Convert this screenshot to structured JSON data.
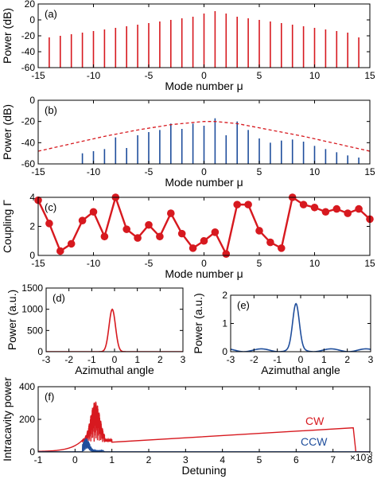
{
  "colors": {
    "red": "#d7191f",
    "blue": "#1f4e9c",
    "axis": "#000000"
  },
  "chart_data": [
    {
      "id": "a",
      "panel_label": "(a)",
      "type": "bar",
      "xlabel": "Mode number μ",
      "ylabel": "Power (dB)",
      "xlim": [
        -15,
        15
      ],
      "ylim": [
        -60,
        20
      ],
      "xticks": [
        -15,
        -10,
        -5,
        0,
        5,
        10,
        15
      ],
      "yticks": [
        -60,
        -40,
        -20,
        0,
        20
      ],
      "x": [
        -14,
        -13,
        -12,
        -11,
        -10,
        -9,
        -8,
        -7,
        -6,
        -5,
        -4,
        -3,
        -2,
        -1,
        0,
        1,
        2,
        3,
        4,
        5,
        6,
        7,
        8,
        9,
        10,
        11,
        12,
        13,
        14
      ],
      "series": [
        {
          "color": "red",
          "values": [
            -22,
            -20,
            -18,
            -16,
            -14,
            -12,
            -10,
            -8,
            -6,
            -4,
            -2,
            0,
            2,
            4,
            8,
            11,
            8,
            4,
            2,
            0,
            -2,
            -4,
            -6,
            -8,
            -10,
            -12,
            -14,
            -16,
            -22
          ]
        }
      ]
    },
    {
      "id": "b",
      "panel_label": "(b)",
      "type": "bar",
      "xlabel": "Mode number μ",
      "ylabel": "Power (dB)",
      "xlim": [
        -15,
        15
      ],
      "ylim": [
        -60,
        0
      ],
      "xticks": [
        -15,
        -10,
        -5,
        0,
        5,
        10,
        15
      ],
      "yticks": [
        -60,
        -40,
        -20,
        0
      ],
      "x": [
        -11,
        -10,
        -9,
        -8,
        -7,
        -6,
        -5,
        -4,
        -3,
        -2,
        -1,
        0,
        1,
        2,
        3,
        4,
        5,
        6,
        7,
        8,
        9,
        10,
        11,
        12,
        13,
        14
      ],
      "series": [
        {
          "color": "blue",
          "values": [
            -50,
            -48,
            -46,
            -35,
            -45,
            -33,
            -30,
            -28,
            -22,
            -27,
            -22,
            -24,
            -17,
            -33,
            -20,
            -28,
            -36,
            -40,
            -38,
            -37,
            -39,
            -43,
            -46,
            -49,
            -52,
            -54
          ]
        },
        {
          "color": "red",
          "style": "dashed",
          "kind": "envelope",
          "x": [
            -15,
            -12,
            -9,
            -6,
            -3,
            0,
            1,
            3,
            6,
            9,
            12,
            15
          ],
          "values": [
            -48,
            -41,
            -34,
            -28,
            -23,
            -20,
            -20,
            -22,
            -28,
            -34,
            -41,
            -48
          ]
        }
      ]
    },
    {
      "id": "c",
      "panel_label": "(c)",
      "type": "line",
      "xlabel": "Mode number μ",
      "ylabel": "Coupling Γ",
      "xlim": [
        -15,
        15
      ],
      "ylim": [
        0,
        4
      ],
      "xticks": [
        -15,
        -10,
        -5,
        0,
        5,
        10,
        15
      ],
      "yticks": [
        0,
        2,
        4
      ],
      "x": [
        -15,
        -14,
        -13,
        -12,
        -11,
        -10,
        -9,
        -8,
        -7,
        -6,
        -5,
        -4,
        -3,
        -2,
        -1,
        0,
        1,
        2,
        3,
        4,
        5,
        6,
        7,
        8,
        9,
        10,
        11,
        12,
        13,
        14,
        15
      ],
      "series": [
        {
          "color": "red",
          "markers": true,
          "values": [
            3.8,
            2.2,
            0.3,
            0.8,
            2.4,
            3.0,
            1.3,
            4.0,
            1.8,
            1.2,
            2.1,
            1.3,
            2.9,
            1.5,
            0.5,
            1.0,
            1.6,
            0.1,
            3.5,
            3.5,
            1.7,
            0.9,
            0.5,
            4.0,
            3.5,
            3.3,
            3.0,
            3.2,
            2.9,
            3.2,
            2.5
          ]
        }
      ]
    },
    {
      "id": "d",
      "panel_label": "(d)",
      "type": "line",
      "xlabel": "Azimuthal angle",
      "ylabel": "Power (a.u.)",
      "xlim": [
        -3,
        3
      ],
      "ylim": [
        0,
        1500
      ],
      "xticks": [
        -3,
        -2,
        -1,
        0,
        1,
        2,
        3
      ],
      "yticks": [
        0,
        500,
        1000,
        1500
      ],
      "series": [
        {
          "color": "red",
          "peak": 1000,
          "peak_x": -0.1
        }
      ]
    },
    {
      "id": "e",
      "panel_label": "(e)",
      "type": "line",
      "xlabel": "Azimuthal angle",
      "ylabel": "Power (a.u.)",
      "xlim": [
        -3,
        3
      ],
      "ylim": [
        0,
        2
      ],
      "xticks": [
        -3,
        -2,
        -1,
        0,
        1,
        2,
        3
      ],
      "yticks": [
        0,
        1,
        2
      ],
      "series": [
        {
          "color": "blue",
          "peak": 1.6,
          "peak_x": -0.2
        }
      ]
    },
    {
      "id": "f",
      "panel_label": "(f)",
      "type": "line",
      "xlabel": "Detuning",
      "ylabel": "Intracavity power",
      "xlim": [
        -1,
        8
      ],
      "ylim": [
        0,
        400
      ],
      "xticks": [
        -1,
        0,
        1,
        2,
        3,
        4,
        5,
        6,
        7,
        8
      ],
      "yticks": [
        0,
        200,
        400
      ],
      "x_exponent": "×10",
      "x_exponent_power": "-3",
      "series": [
        {
          "name": "CW",
          "color": "red"
        },
        {
          "name": "CCW",
          "color": "blue"
        }
      ]
    }
  ]
}
